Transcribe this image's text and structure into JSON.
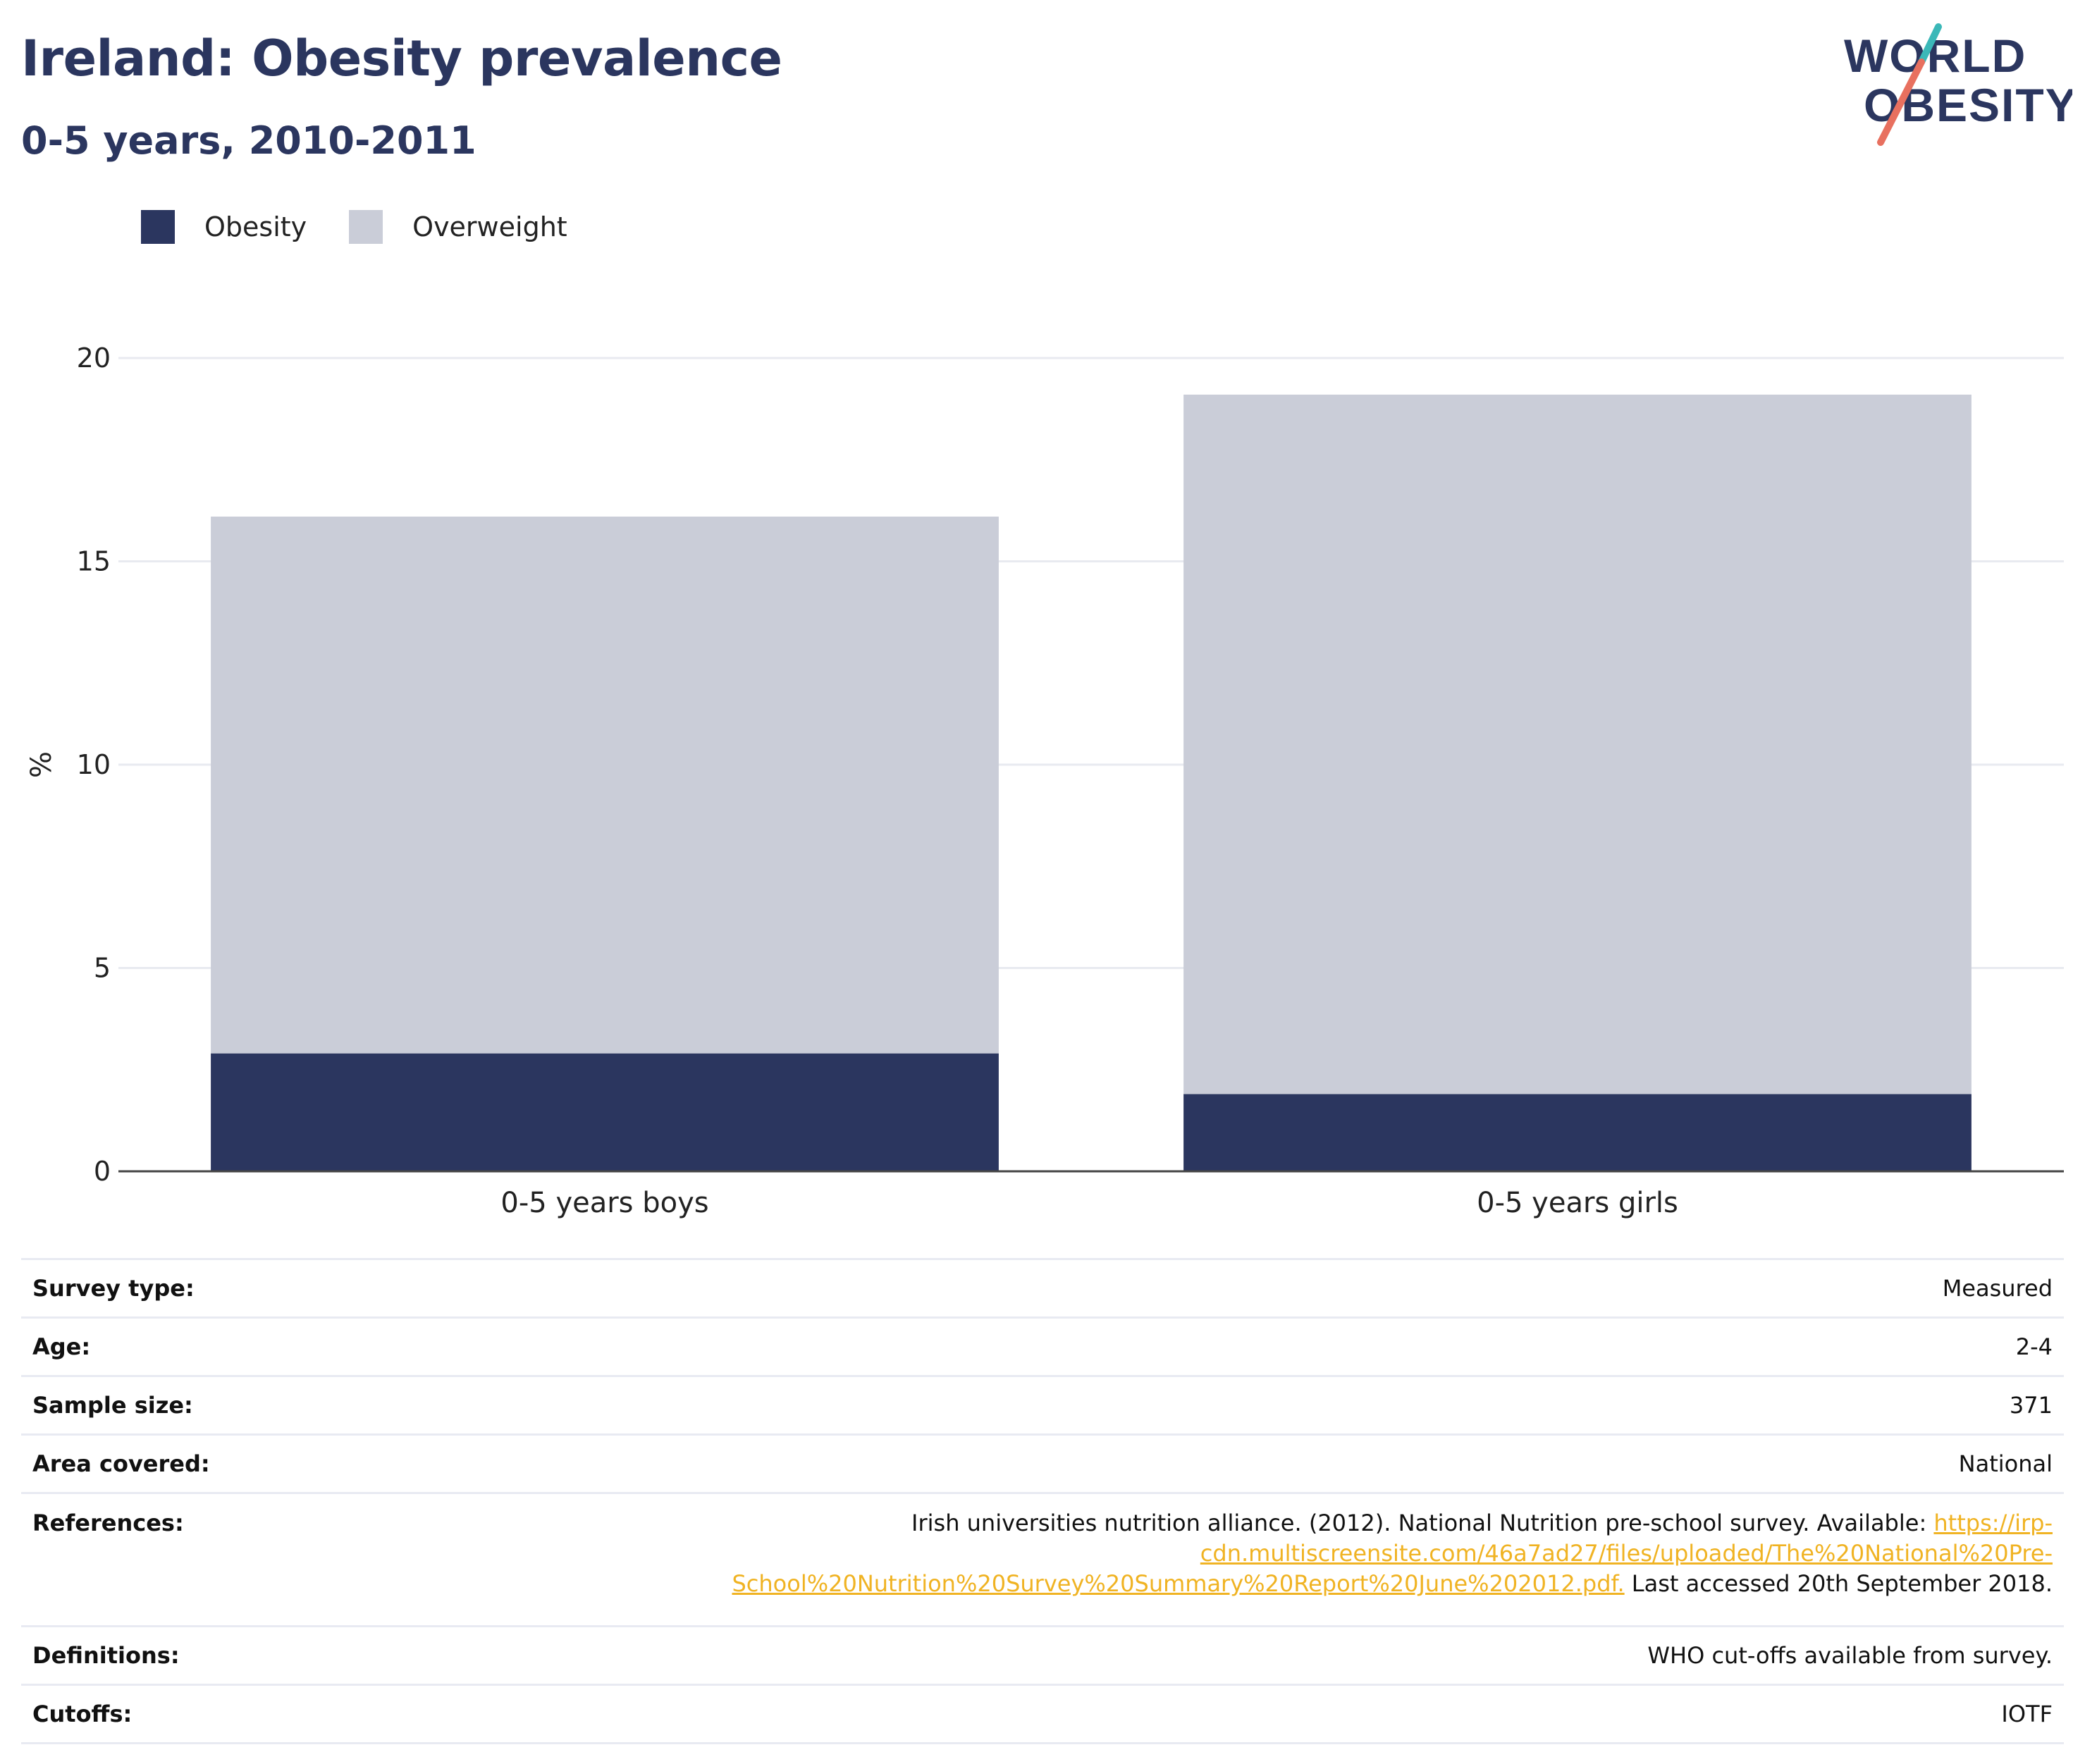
{
  "header": {
    "title": "Ireland: Obesity prevalence",
    "subtitle": "0-5 years, 2010-2011",
    "logo_line1": "WORLD",
    "logo_line2": "OBESITY"
  },
  "colors": {
    "obesity": "#2b365f",
    "overweight": "#cacdd8",
    "accent_teal": "#3bb8b8",
    "accent_coral": "#e8705f",
    "link": "#f0b323"
  },
  "chart_data": {
    "type": "bar",
    "stacked": true,
    "categories": [
      "0-5 years boys",
      "0-5 years girls"
    ],
    "series": [
      {
        "name": "Obesity",
        "values": [
          2.9,
          1.9
        ]
      },
      {
        "name": "Overweight",
        "values": [
          13.2,
          17.2
        ]
      }
    ],
    "ylabel": "%",
    "ylim": [
      0,
      20
    ],
    "yticks": [
      0,
      5,
      10,
      15,
      20
    ],
    "grid": true,
    "legend": "top-left"
  },
  "metadata": {
    "rows": [
      {
        "label": "Survey type:",
        "value": "Measured"
      },
      {
        "label": "Age:",
        "value": "2-4"
      },
      {
        "label": "Sample size:",
        "value": "371"
      },
      {
        "label": "Area covered:",
        "value": "National"
      },
      {
        "label": "References:",
        "value_prefix": "Irish universities nutrition alliance. (2012). National Nutrition pre-school survey. Available: ",
        "link_line1": "https://irp-",
        "link_line2": "cdn.multiscreensite.com/46a7ad27/files/uploaded/The%20National%20Pre-",
        "link_line3": "School%20Nutrition%20Survey%20Summary%20Report%20June%202012.pdf.",
        "value_suffix": " Last accessed 20th September 2018."
      },
      {
        "label": "Definitions:",
        "value": "WHO cut-offs available from survey."
      },
      {
        "label": "Cutoffs:",
        "value": "IOTF"
      }
    ]
  }
}
